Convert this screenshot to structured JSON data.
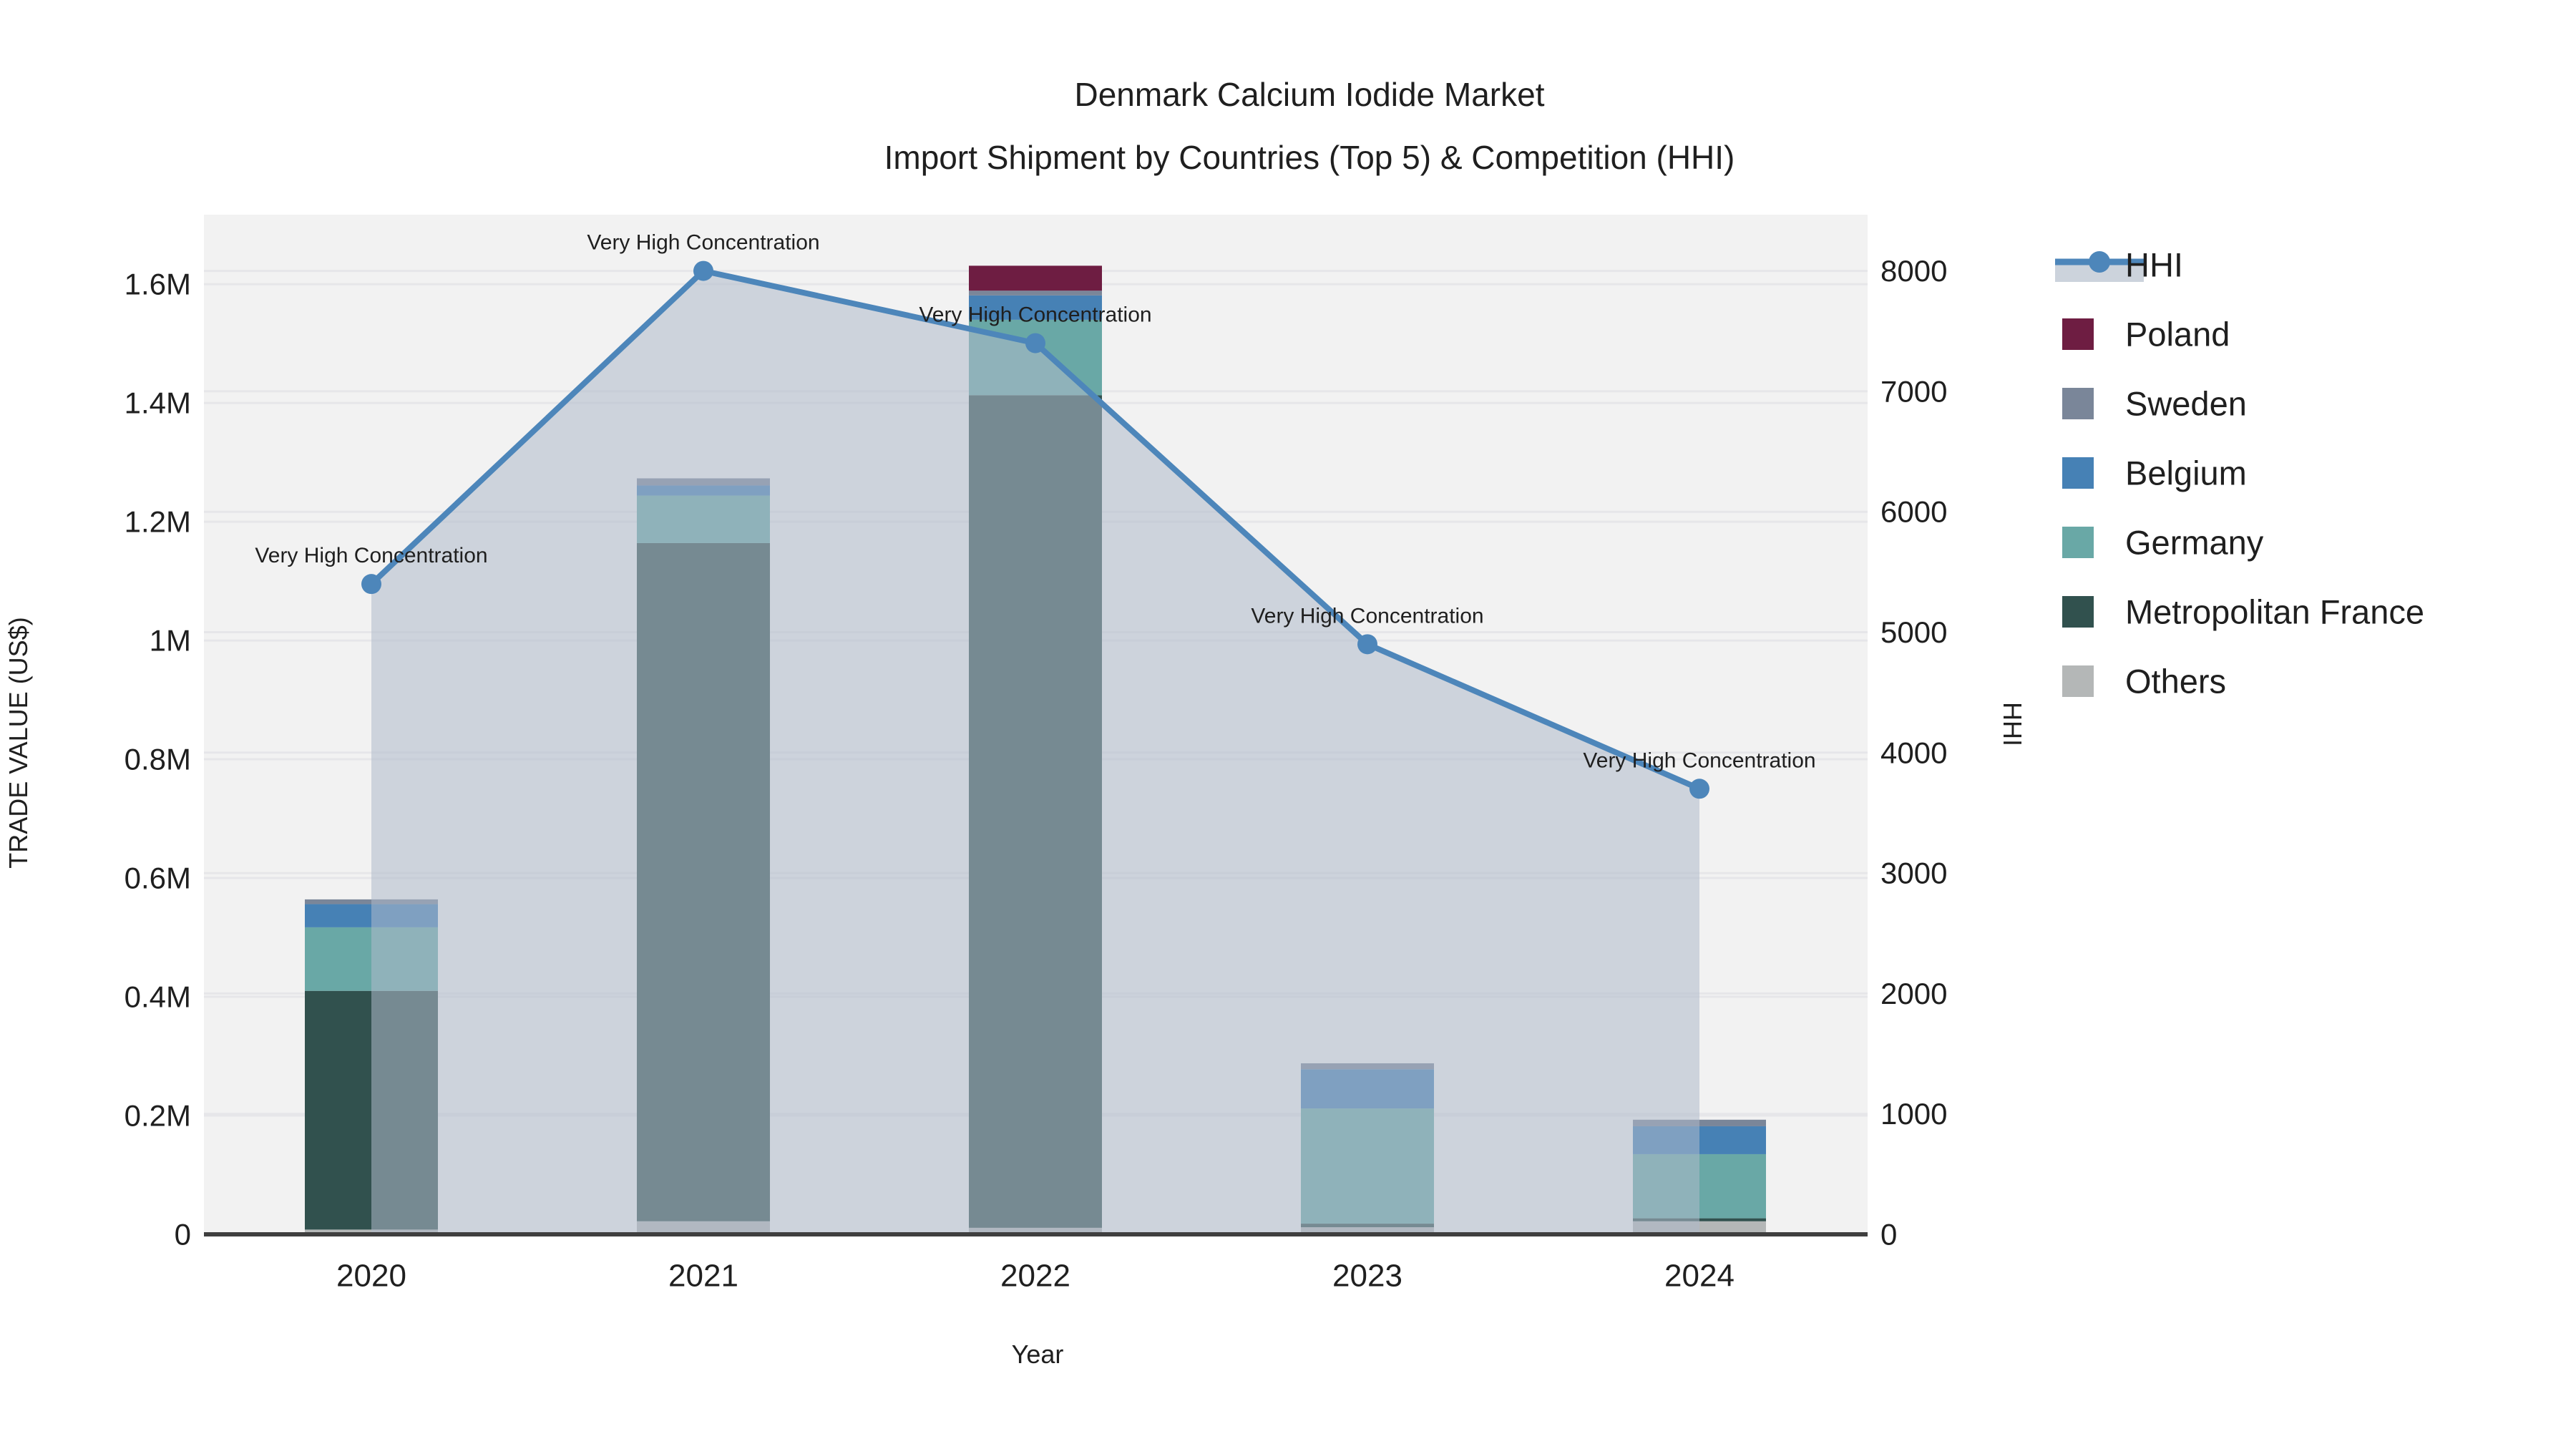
{
  "title": {
    "line1": "Denmark Calcium Iodide Market",
    "line2": "Import Shipment by Countries (Top 5) & Competition (HHI)"
  },
  "chart_data": {
    "type": "bar+line",
    "description": "Stacked bars of import trade value by partner country (left axis) with HHI competition index line and shaded area (right axis)",
    "categories": [
      "2020",
      "2021",
      "2022",
      "2023",
      "2024"
    ],
    "series": [
      {
        "name": "Others",
        "color": "#b4b7b7",
        "values": [
          8000,
          22000,
          11000,
          12000,
          22000
        ]
      },
      {
        "name": "Metropolitan France",
        "color": "#31514e",
        "values": [
          402000,
          1142000,
          1402000,
          6000,
          5000
        ]
      },
      {
        "name": "Germany",
        "color": "#69a8a6",
        "values": [
          107000,
          80000,
          127000,
          194000,
          108000
        ]
      },
      {
        "name": "Belgium",
        "color": "#4681b5",
        "values": [
          39000,
          17000,
          41000,
          66000,
          47000
        ]
      },
      {
        "name": "Sweden",
        "color": "#7a8699",
        "values": [
          8000,
          12000,
          8000,
          10000,
          11000
        ]
      },
      {
        "name": "Poland",
        "color": "#6e1d42",
        "values": [
          0,
          0,
          42000,
          0,
          0
        ]
      }
    ],
    "line_series": {
      "name": "HHI",
      "color": "#4d86ba",
      "area_fill": "rgba(174,186,202,0.55)",
      "values": [
        5400,
        8000,
        7400,
        4900,
        3700
      ]
    },
    "annotations": [
      "Very High Concentration",
      "Very High Concentration",
      "Very High Concentration",
      "Very High Concentration",
      "Very High Concentration"
    ],
    "left_axis": {
      "label": "TRADE VALUE (US$)",
      "ticks": [
        "0",
        "0.2M",
        "0.4M",
        "0.6M",
        "0.8M",
        "1M",
        "1.2M",
        "1.4M",
        "1.6M"
      ],
      "tick_values": [
        0,
        200000,
        400000,
        600000,
        800000,
        1000000,
        1200000,
        1400000,
        1600000
      ],
      "axis_max": 1717000
    },
    "right_axis": {
      "label": "HHI",
      "ticks": [
        "0",
        "1000",
        "2000",
        "3000",
        "4000",
        "5000",
        "6000",
        "7000",
        "8000"
      ],
      "tick_values": [
        0,
        1000,
        2000,
        3000,
        4000,
        5000,
        6000,
        7000,
        8000
      ],
      "axis_max": 8467
    },
    "x_axis": {
      "label": "Year"
    },
    "plot_background": "#f2f2f2",
    "gridline_color": "#e6e6e9",
    "axis_line_color": "#3f3f3f",
    "legend_position": "right"
  },
  "legend": {
    "items": [
      {
        "label": "HHI",
        "type": "line",
        "color": "#4d86ba",
        "band": "#ccd3dc"
      },
      {
        "label": "Poland",
        "type": "swatch",
        "color": "#6e1d42"
      },
      {
        "label": "Sweden",
        "type": "swatch",
        "color": "#7a8699"
      },
      {
        "label": "Belgium",
        "type": "swatch",
        "color": "#4681b5"
      },
      {
        "label": "Germany",
        "type": "swatch",
        "color": "#69a8a6"
      },
      {
        "label": "Metropolitan France",
        "type": "swatch",
        "color": "#31514e"
      },
      {
        "label": "Others",
        "type": "swatch",
        "color": "#b4b7b7"
      }
    ]
  }
}
